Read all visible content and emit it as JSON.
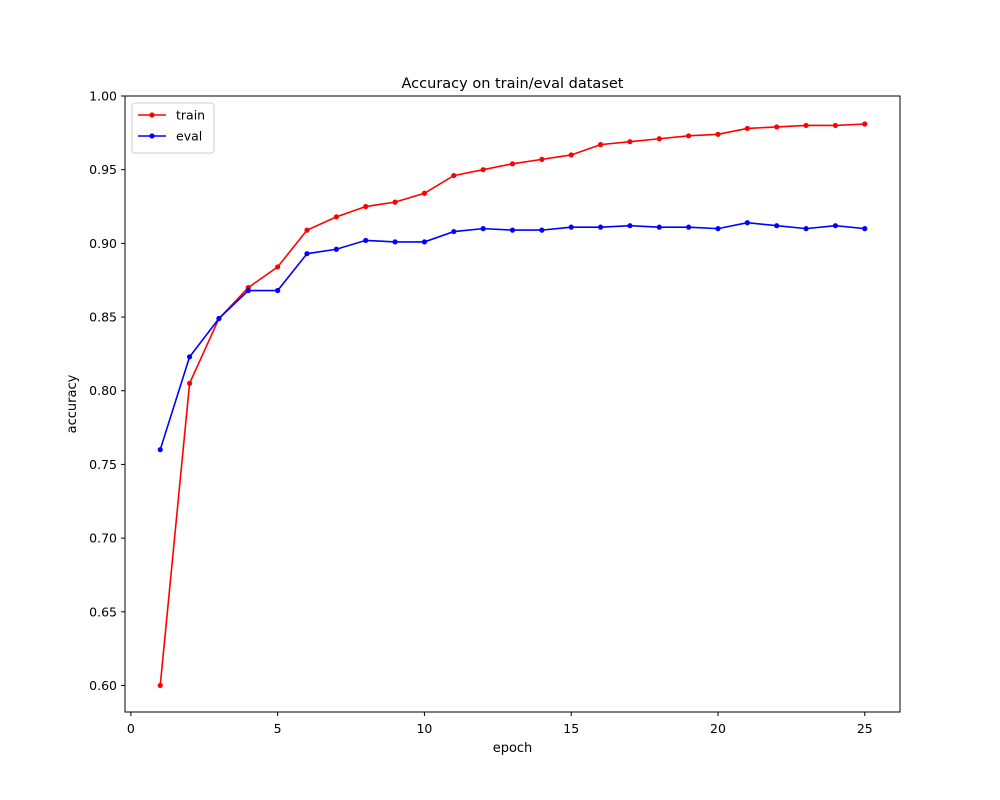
{
  "chart_data": {
    "type": "line",
    "title": "Accuracy on train/eval dataset",
    "xlabel": "epoch",
    "ylabel": "accuracy",
    "xlim": [
      -0.2,
      26.2
    ],
    "ylim": [
      0.582,
      1.0
    ],
    "x_ticks": [
      0,
      5,
      10,
      15,
      20,
      25
    ],
    "y_ticks": [
      0.6,
      0.65,
      0.7,
      0.75,
      0.8,
      0.85,
      0.9,
      0.95,
      1.0
    ],
    "grid": false,
    "legend_position": "upper-left",
    "x": [
      1,
      2,
      3,
      4,
      5,
      6,
      7,
      8,
      9,
      10,
      11,
      12,
      13,
      14,
      15,
      16,
      17,
      18,
      19,
      20,
      21,
      22,
      23,
      24,
      25
    ],
    "series": [
      {
        "name": "train",
        "color": "#ff0000",
        "marker": "point",
        "values": [
          0.6,
          0.805,
          0.849,
          0.87,
          0.884,
          0.909,
          0.918,
          0.925,
          0.928,
          0.934,
          0.946,
          0.95,
          0.954,
          0.957,
          0.96,
          0.967,
          0.969,
          0.971,
          0.973,
          0.974,
          0.978,
          0.979,
          0.98,
          0.98,
          0.981
        ]
      },
      {
        "name": "eval",
        "color": "#0000ff",
        "marker": "point",
        "values": [
          0.76,
          0.823,
          0.849,
          0.868,
          0.868,
          0.893,
          0.896,
          0.902,
          0.901,
          0.901,
          0.908,
          0.91,
          0.909,
          0.909,
          0.911,
          0.911,
          0.912,
          0.911,
          0.911,
          0.91,
          0.914,
          0.912,
          0.91,
          0.912,
          0.91
        ]
      }
    ]
  }
}
